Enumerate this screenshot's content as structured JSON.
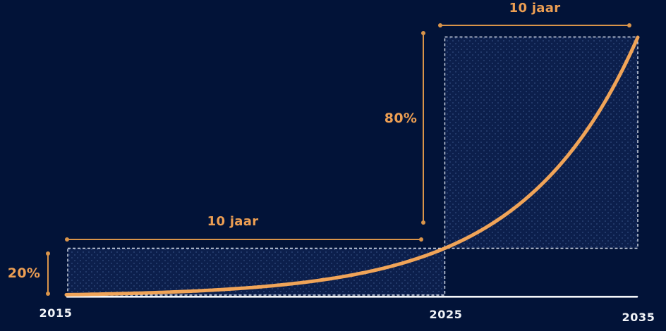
{
  "chart_data": {
    "type": "line",
    "curve_shape": "exponential",
    "x_years": [
      2015,
      2025,
      2035
    ],
    "values_percent": [
      0,
      20,
      100
    ],
    "x_tick_labels": [
      "2015",
      "2025",
      "2035"
    ],
    "ylim_percent": [
      0,
      100
    ],
    "grid": false,
    "legend": "none",
    "annotations": {
      "span_2015_2025": {
        "label": "10 jaar",
        "from_year": 2015,
        "to_year": 2025
      },
      "span_2025_2035": {
        "label": "10 jaar",
        "from_year": 2025,
        "to_year": 2035
      },
      "growth_first_decade": {
        "label": "20%",
        "value_percent": 20
      },
      "growth_second_decade": {
        "label": "80%",
        "value_percent": 80
      }
    },
    "colors": {
      "background": "#021338",
      "accent_orange": "#EC9E53",
      "measure_line_orange": "#D9944A",
      "curve_orange": "#F0A458",
      "axis_white": "#F5F7FA",
      "box_border_white": "#D9E0EC",
      "box_fill_navy": "#0C1F4C",
      "box_dot_blue": "#324B7E",
      "year_label_white": "#F2F4F8"
    }
  }
}
